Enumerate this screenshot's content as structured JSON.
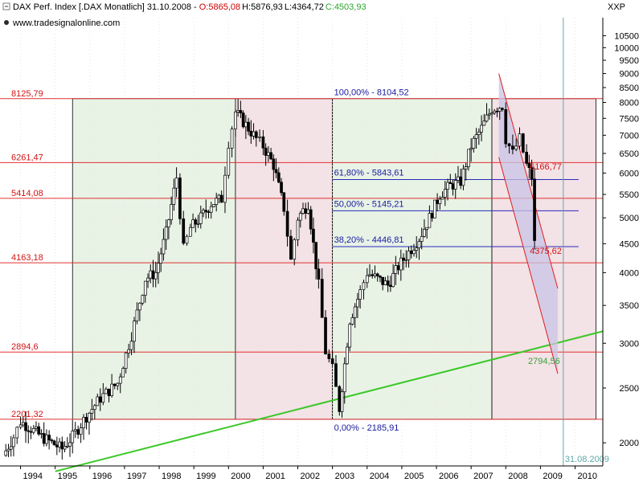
{
  "header": {
    "symbol": "DAX Perf. Index [.DAX  Monatlich] 31.10.2008 - ",
    "o": "O:5865,08",
    "h": "H:5876,93",
    "l": "L:4364,72",
    "c": "C:4503,93",
    "website": "www.tradesignalonline.com",
    "axis_code": "XXP"
  },
  "chart_data": {
    "type": "candlestick",
    "y_scale": "log",
    "ylim": [
      1820,
      11300
    ],
    "x_range_years": [
      1993.5,
      2010.8
    ],
    "y_ticks": [
      "2000",
      "2500",
      "3000",
      "3500",
      "4000",
      "4500",
      "5000",
      "5500",
      "6000",
      "6500",
      "7000",
      "7500",
      "8000",
      "8500",
      "9000",
      "9500",
      "10000",
      "10500"
    ],
    "x_ticks": [
      "1994",
      "1995",
      "1996",
      "1997",
      "1998",
      "1999",
      "2000",
      "2001",
      "2002",
      "2003",
      "2004",
      "2005",
      "2006",
      "2007",
      "2008",
      "2009",
      "2010"
    ],
    "horizontal_levels": [
      {
        "label": "8125,79",
        "value": 8125.79
      },
      {
        "label": "6261,47",
        "value": 6261.47
      },
      {
        "label": "5414,08",
        "value": 5414.08
      },
      {
        "label": "4163,18",
        "value": 4163.18
      },
      {
        "label": "2894,6",
        "value": 2894.6
      },
      {
        "label": "2201,32",
        "value": 2201.32
      }
    ],
    "fibonacci": [
      {
        "label": "100,00% - 8104,52",
        "value": 8104.52
      },
      {
        "label": "61,80% - 5843,61",
        "value": 5843.61
      },
      {
        "label": "50,00% - 5145,21",
        "value": 5145.21
      },
      {
        "label": "38,20% - 4446,81",
        "value": 4446.81
      },
      {
        "label": "0,00% - 2185,91",
        "value": 2185.91
      }
    ],
    "annotations": [
      {
        "label": "6166,77",
        "year": 2008.6,
        "value": 6166.77
      },
      {
        "label": "4375,62",
        "year": 2008.6,
        "value": 4375.62
      },
      {
        "label": "2794,56",
        "year": 2008.55,
        "value": 2794.56
      }
    ],
    "vertical_marker": {
      "label": "31.08.2009",
      "year": 2009.66
    },
    "zones": [
      {
        "start": 1995.5,
        "end": 2000.2,
        "top": 8125.79,
        "bottom": 2201.32,
        "fill": "#e8f3e6"
      },
      {
        "start": 2000.2,
        "end": 2003.0,
        "top": 8125.79,
        "bottom": 2201.32,
        "fill": "#f3e2e6"
      },
      {
        "start": 2003.0,
        "end": 2007.6,
        "top": 8125.79,
        "bottom": 2201.32,
        "fill": "#e8f3e6"
      },
      {
        "start": 2007.6,
        "end": 2010.6,
        "top": 8125.79,
        "bottom": 2201.32,
        "fill": "#f3e2e6"
      }
    ],
    "trend_line": {
      "from": {
        "year": 1995.0,
        "value": 1780
      },
      "to": {
        "year": 2010.8,
        "value": 3150
      },
      "color": "#3cc828"
    },
    "channel": {
      "upper": {
        "from": {
          "year": 2007.8,
          "value": 9000
        },
        "to": {
          "year": 2009.5,
          "value": 3750
        }
      },
      "lower": {
        "from": {
          "year": 2007.8,
          "value": 6400
        },
        "to": {
          "year": 2009.5,
          "value": 2650
        }
      },
      "fill": "#c9c4e6"
    },
    "series_points": [
      [
        1993.5,
        1900
      ],
      [
        1993.8,
        2050
      ],
      [
        1994.0,
        2180
      ],
      [
        1994.3,
        2120
      ],
      [
        1994.6,
        2050
      ],
      [
        1994.9,
        2000
      ],
      [
        1995.2,
        1950
      ],
      [
        1995.5,
        2050
      ],
      [
        1995.9,
        2230
      ],
      [
        1996.3,
        2400
      ],
      [
        1996.8,
        2550
      ],
      [
        1997.2,
        3100
      ],
      [
        1997.6,
        3900
      ],
      [
        1997.9,
        4000
      ],
      [
        1998.2,
        4700
      ],
      [
        1998.5,
        5900
      ],
      [
        1998.7,
        4400
      ],
      [
        1998.9,
        4800
      ],
      [
        1999.2,
        5000
      ],
      [
        1999.5,
        5300
      ],
      [
        1999.8,
        5400
      ],
      [
        2000.0,
        6800
      ],
      [
        2000.2,
        7700
      ],
      [
        2000.5,
        7300
      ],
      [
        2000.8,
        6900
      ],
      [
        2001.0,
        6700
      ],
      [
        2001.3,
        6200
      ],
      [
        2001.6,
        5200
      ],
      [
        2001.8,
        4200
      ],
      [
        2002.0,
        5000
      ],
      [
        2002.3,
        5300
      ],
      [
        2002.6,
        3800
      ],
      [
        2002.8,
        2900
      ],
      [
        2003.0,
        2700
      ],
      [
        2003.2,
        2300
      ],
      [
        2003.5,
        3300
      ],
      [
        2003.8,
        3700
      ],
      [
        2004.0,
        4000
      ],
      [
        2004.3,
        3900
      ],
      [
        2004.6,
        3800
      ],
      [
        2004.9,
        4100
      ],
      [
        2005.2,
        4350
      ],
      [
        2005.5,
        4600
      ],
      [
        2005.8,
        5000
      ],
      [
        2006.1,
        5500
      ],
      [
        2006.4,
        5700
      ],
      [
        2006.7,
        5800
      ],
      [
        2007.0,
        6700
      ],
      [
        2007.3,
        7200
      ],
      [
        2007.6,
        7800
      ],
      [
        2007.9,
        7900
      ],
      [
        2008.0,
        6900
      ],
      [
        2008.2,
        6500
      ],
      [
        2008.4,
        6900
      ],
      [
        2008.6,
        6200
      ],
      [
        2008.75,
        5900
      ],
      [
        2008.83,
        4500
      ]
    ]
  }
}
